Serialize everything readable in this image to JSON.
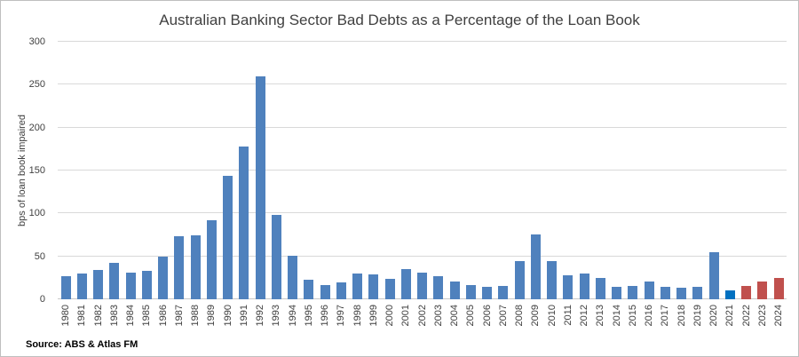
{
  "title": "Australian Banking Sector Bad Debts as a Percentage of the Loan Book",
  "source": "Source: ABS & Atlas FM",
  "chart_data": {
    "type": "bar",
    "title": "Australian Banking Sector Bad Debts as a Percentage of the Loan Book",
    "xlabel": "",
    "ylabel": "bps of loan book impaired",
    "ylim": [
      0,
      300
    ],
    "yticks": [
      0,
      50,
      100,
      150,
      200,
      250,
      300
    ],
    "grid": true,
    "legend": false,
    "x_tick_rotation": 90,
    "categories": [
      "1980",
      "1981",
      "1982",
      "1983",
      "1984",
      "1985",
      "1986",
      "1987",
      "1988",
      "1989",
      "1990",
      "1991",
      "1992",
      "1993",
      "1994",
      "1995",
      "1996",
      "1997",
      "1998",
      "1999",
      "2000",
      "2001",
      "2002",
      "2003",
      "2004",
      "2005",
      "2006",
      "2007",
      "2008",
      "2009",
      "2010",
      "2011",
      "2012",
      "2013",
      "2014",
      "2015",
      "2016",
      "2017",
      "2018",
      "2019",
      "2020",
      "2021",
      "2022",
      "2023",
      "2024"
    ],
    "values": [
      27,
      30,
      34,
      42,
      31,
      33,
      50,
      73,
      74,
      92,
      144,
      178,
      260,
      98,
      51,
      23,
      17,
      20,
      30,
      29,
      24,
      35,
      31,
      27,
      21,
      17,
      15,
      16,
      44,
      76,
      44,
      28,
      30,
      25,
      15,
      16,
      21,
      15,
      13,
      14,
      55,
      10,
      16,
      21,
      25
    ],
    "bar_color_default": "#4F81BD",
    "bar_color_overrides": {
      "2021": "#0070C0",
      "2022": "#C0504D",
      "2023": "#C0504D",
      "2024": "#C0504D"
    },
    "grid_color": "#d9d9d9",
    "text_color": "#404040",
    "border_color": "#bfbfbf"
  }
}
